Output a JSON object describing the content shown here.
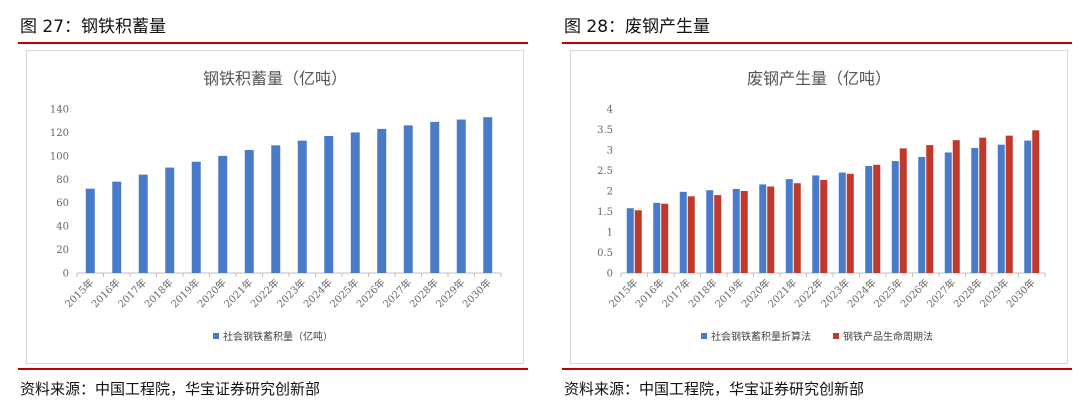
{
  "colors": {
    "blue": "#4a7bc8",
    "red": "#c0392b",
    "rule": "#c00000",
    "axis": "#bfbfbf"
  },
  "figures": [
    {
      "caption": "图 27：钢铁积蓄量",
      "source": "资料来源：中国工程院，华宝证券研究创新部",
      "chart_data": {
        "type": "bar",
        "title": "钢铁积蓄量（亿吨）",
        "xlabel": "",
        "ylabel": "",
        "categories": [
          "2015年",
          "2016年",
          "2017年",
          "2018年",
          "2019年",
          "2020年",
          "2021年",
          "2022年",
          "2023年",
          "2024年",
          "2025年",
          "2026年",
          "2027年",
          "2028年",
          "2029年",
          "2030年"
        ],
        "yticks": [
          "0",
          "20",
          "40",
          "60",
          "80",
          "100",
          "120",
          "140"
        ],
        "ylim": [
          0,
          140
        ],
        "grid": false,
        "legend_position": "bottom",
        "series": [
          {
            "name": "社会钢铁蓄积量（亿吨）",
            "color": "#4a7bc8",
            "values": [
              72,
              78,
              84,
              90,
              95,
              100,
              105,
              109,
              113,
              117,
              120,
              123,
              126,
              129,
              131,
              133
            ]
          }
        ]
      }
    },
    {
      "caption": "图 28：废钢产生量",
      "source": "资料来源：中国工程院，华宝证券研究创新部",
      "chart_data": {
        "type": "bar",
        "title": "废钢产生量（亿吨）",
        "xlabel": "",
        "ylabel": "",
        "categories": [
          "2015年",
          "2016年",
          "2017年",
          "2018年",
          "2019年",
          "2020年",
          "2021年",
          "2022年",
          "2023年",
          "2024年",
          "2025年",
          "2026年",
          "2027年",
          "2028年",
          "2029年",
          "2030年"
        ],
        "yticks": [
          "0",
          "0.5",
          "1",
          "1.5",
          "2",
          "2.5",
          "3",
          "3.5",
          "4"
        ],
        "ylim": [
          0,
          4
        ],
        "grid": false,
        "legend_position": "bottom",
        "series": [
          {
            "name": "社会钢铁蓄积量折算法",
            "color": "#4a7bc8",
            "values": [
              1.58,
              1.71,
              1.98,
              2.02,
              2.05,
              2.16,
              2.29,
              2.38,
              2.45,
              2.61,
              2.73,
              2.83,
              2.94,
              3.05,
              3.13,
              3.23
            ]
          },
          {
            "name": "钢铁产品生命周期法",
            "color": "#c0392b",
            "values": [
              1.53,
              1.69,
              1.87,
              1.9,
              2.0,
              2.11,
              2.19,
              2.27,
              2.42,
              2.64,
              3.04,
              3.12,
              3.24,
              3.3,
              3.35,
              3.48
            ]
          }
        ]
      }
    }
  ]
}
